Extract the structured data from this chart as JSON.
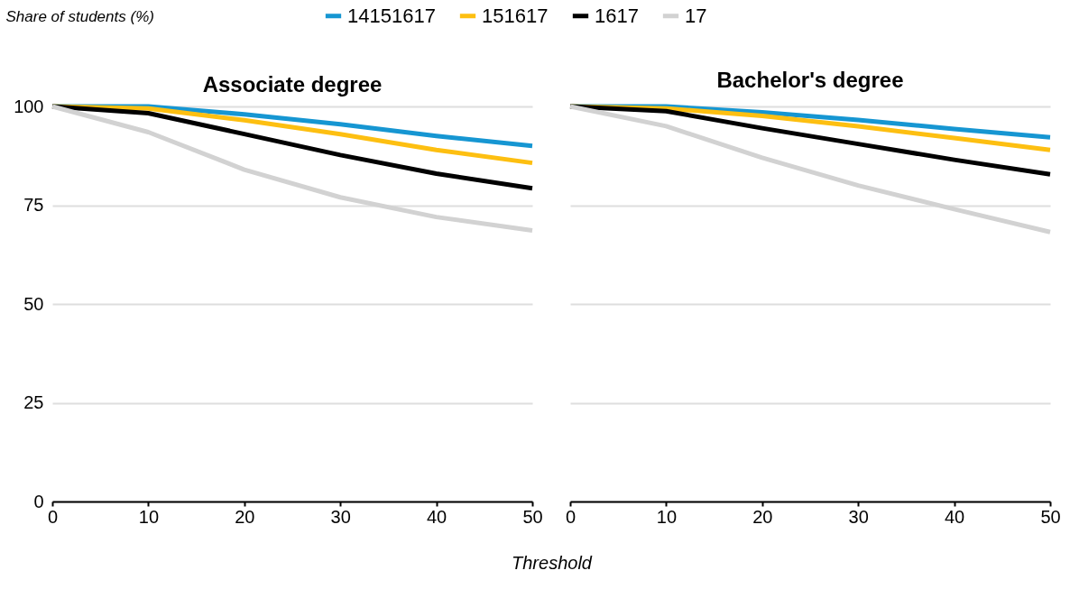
{
  "chart_data": [
    {
      "type": "line",
      "title": "Associate degree",
      "xlabel": "Threshold",
      "ylabel": "Share of students (%)",
      "x": [
        0,
        10,
        20,
        30,
        40,
        50
      ],
      "xlim": [
        0,
        50
      ],
      "xticks": [
        0,
        10,
        20,
        30,
        40,
        50
      ],
      "ylim": [
        0,
        100
      ],
      "yticks": [
        0,
        25,
        50,
        75,
        100
      ],
      "grid": "y",
      "legend": "top",
      "series": [
        {
          "name": "14151617",
          "color": "#1696d2",
          "values": [
            100,
            100,
            98,
            95.5,
            92.5,
            90
          ]
        },
        {
          "name": "151617",
          "color": "#fdbf11",
          "values": [
            100,
            99.5,
            96.5,
            93,
            89,
            85.7
          ]
        },
        {
          "name": "1617",
          "color": "#000000",
          "values": [
            100,
            98.3,
            93,
            87.7,
            83,
            79.3
          ]
        },
        {
          "name": "17",
          "color": "#d2d2d2",
          "values": [
            100,
            93.5,
            84,
            77,
            72,
            68.6
          ]
        }
      ]
    },
    {
      "type": "line",
      "title": "Bachelor's degree",
      "x": [
        0,
        10,
        20,
        30,
        40,
        50
      ],
      "xlim": [
        0,
        50
      ],
      "xticks": [
        0,
        10,
        20,
        30,
        40,
        50
      ],
      "ylim": [
        0,
        100
      ],
      "yticks": [
        0,
        25,
        50,
        75,
        100
      ],
      "grid": "y",
      "tick_labels": "x",
      "series": [
        {
          "name": "14151617",
          "color": "#1696d2",
          "values": [
            100,
            100,
            98.5,
            96.6,
            94.3,
            92.2
          ]
        },
        {
          "name": "151617",
          "color": "#fdbf11",
          "values": [
            100,
            99.5,
            97.6,
            95,
            92,
            89
          ]
        },
        {
          "name": "1617",
          "color": "#000000",
          "values": [
            100,
            98.8,
            94.5,
            90.5,
            86.5,
            82.8
          ]
        },
        {
          "name": "17",
          "color": "#d2d2d2",
          "values": [
            100,
            95,
            87,
            80,
            74,
            68.2
          ]
        }
      ]
    }
  ]
}
